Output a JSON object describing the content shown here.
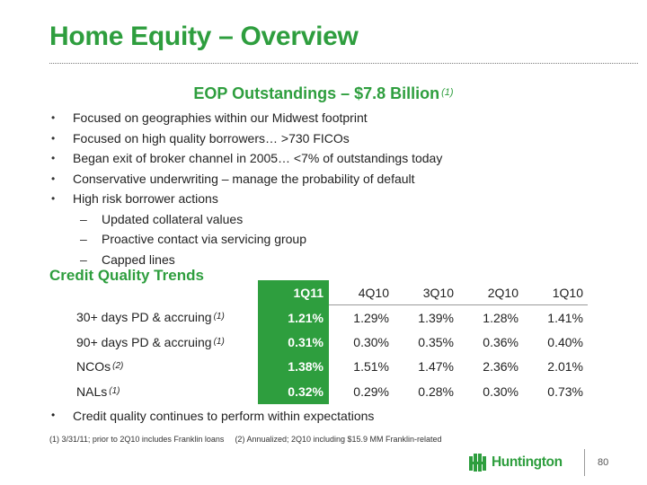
{
  "title": "Home Equity – Overview",
  "subhead": {
    "text": "EOP Outstandings – $7.8 Billion",
    "note": "(1)"
  },
  "bullets": [
    "Focused on geographies within our Midwest footprint",
    "Focused on high quality borrowers… >730 FICOs",
    "Began exit of broker channel in 2005… <7% of outstandings today",
    "Conservative underwriting – manage the probability of default",
    "High risk borrower actions"
  ],
  "sub_bullets": [
    "Updated collateral values",
    "Proactive contact via servicing group",
    "Capped lines"
  ],
  "section_title": "Credit Quality Trends",
  "table": {
    "columns": [
      "1Q11",
      "4Q10",
      "3Q10",
      "2Q10",
      "1Q10"
    ],
    "rows": [
      {
        "label": "30+ days PD & accruing",
        "note": "(1)",
        "values": [
          "1.21%",
          "1.29%",
          "1.39%",
          "1.28%",
          "1.41%"
        ]
      },
      {
        "label": "90+ days PD & accruing",
        "note": "(1)",
        "values": [
          "0.31%",
          "0.30%",
          "0.35%",
          "0.36%",
          "0.40%"
        ]
      },
      {
        "label": "NCOs",
        "note": "(2)",
        "values": [
          "1.38%",
          "1.51%",
          "1.47%",
          "2.36%",
          "2.01%"
        ]
      },
      {
        "label": "NALs",
        "note": "(1)",
        "values": [
          "0.32%",
          "0.29%",
          "0.28%",
          "0.30%",
          "0.73%"
        ]
      }
    ]
  },
  "closing_bullet": "Credit quality continues to perform within expectations",
  "footnotes": [
    "(1)  3/31/11; prior to 2Q10 includes Franklin loans",
    "(2) Annualized; 2Q10 including $15.9 MM Franklin-related"
  ],
  "logo": {
    "text": "Huntington",
    "icon": "huntington-logo-icon"
  },
  "page_number": "80",
  "colors": {
    "brand_green": "#2e9e3e",
    "text": "#222222"
  }
}
